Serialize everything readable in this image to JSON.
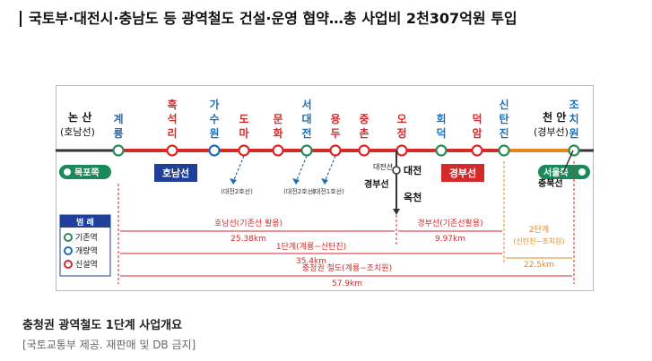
{
  "headline": "국토부·대전시·충남도 등 광역철도 건설·운영 협약…총 사업비 2천307억원 투입",
  "caption": "충청권 광역철도 1단계 사업개요",
  "credit": "[국토교통부 제공. 재판매 및 DB 금지]",
  "map": {
    "colors": {
      "existing_line": "#d42a2a",
      "stage2_line": "#e8851d",
      "blue_text": "#1e6fb5",
      "red_text": "#d42a2a",
      "honam_badge": "#1f3f9a",
      "gyeongbu_badge": "#d42a2a"
    },
    "endpoints": {
      "left_name": "논 산",
      "left_line": "(호남선)",
      "right_name": "천 안",
      "right_line": "(경부선)"
    },
    "stations": [
      {
        "name": "계룡",
        "type": "existing"
      },
      {
        "name": "흑석리",
        "type": "new"
      },
      {
        "name": "가수원",
        "type": "upgraded"
      },
      {
        "name": "도마",
        "type": "new",
        "transfer": "(대전2호선)"
      },
      {
        "name": "문화",
        "type": "new"
      },
      {
        "name": "서대전",
        "type": "existing",
        "transfer": "(대전2호선)"
      },
      {
        "name": "용두",
        "type": "new",
        "transfer": "(대전1호선)"
      },
      {
        "name": "중촌",
        "type": "new"
      },
      {
        "name": "오정",
        "type": "new"
      },
      {
        "name": "회덕",
        "type": "existing"
      },
      {
        "name": "덕암",
        "type": "new"
      },
      {
        "name": "신탄진",
        "type": "existing"
      },
      {
        "name": "조치원",
        "type": "existing"
      }
    ],
    "direction_left": "목포쪽",
    "direction_right": "서울쪽",
    "badge_honam": "호남선",
    "badge_gyeongbu": "경부선",
    "daejeon_line_label": "대전선",
    "daejeon_station": "대전",
    "gyeongbu_line_label": "경부선",
    "okcheon_station": "옥천",
    "chungbuk_line_label": "충북선",
    "legend": {
      "title": "범 례",
      "items": [
        "기존역",
        "개량역",
        "신설역"
      ]
    },
    "dimensions": [
      {
        "label": "호남선(기존선 활용)",
        "value": "25.38km"
      },
      {
        "label": "경부선(기존선활용)",
        "value": "9.97km"
      },
      {
        "label": "2단계",
        "sub": "(신탄진~조치원)",
        "value": "22.5km"
      },
      {
        "label": "1단계(계룡~신탄진)",
        "value": "35.4km"
      },
      {
        "label": "충청권 철도(계룡~조치원)",
        "value": "57.9km"
      }
    ]
  }
}
